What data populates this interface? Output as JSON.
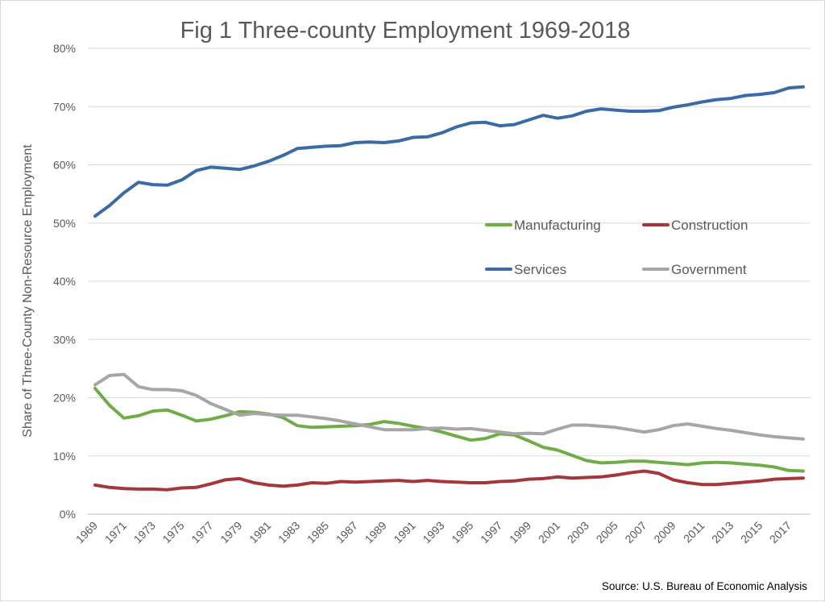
{
  "chart_data": {
    "type": "line",
    "title": "Fig 1 Three-county Employment 1969-2018",
    "ylabel": "Share of Three-County Non-Resource Employment",
    "xlabel": "",
    "source": "Source: U.S. Bureau of Economic Analysis",
    "ylim": [
      0,
      80
    ],
    "yticks": [
      "0%",
      "10%",
      "20%",
      "30%",
      "40%",
      "50%",
      "60%",
      "70%",
      "80%"
    ],
    "x": [
      1969,
      1970,
      1971,
      1972,
      1973,
      1974,
      1975,
      1976,
      1977,
      1978,
      1979,
      1980,
      1981,
      1982,
      1983,
      1984,
      1985,
      1986,
      1987,
      1988,
      1989,
      1990,
      1991,
      1992,
      1993,
      1994,
      1995,
      1996,
      1997,
      1998,
      1999,
      2000,
      2001,
      2002,
      2003,
      2004,
      2005,
      2006,
      2007,
      2008,
      2009,
      2010,
      2011,
      2012,
      2013,
      2014,
      2015,
      2016,
      2017,
      2018
    ],
    "xtick_labels": [
      "1969",
      "1971",
      "1973",
      "1975",
      "1977",
      "1979",
      "1981",
      "1983",
      "1985",
      "1987",
      "1989",
      "1991",
      "1993",
      "1995",
      "1997",
      "1999",
      "2001",
      "2003",
      "2005",
      "2007",
      "2009",
      "2011",
      "2013",
      "2015",
      "2017"
    ],
    "grid": true,
    "legend_placement": "center-right",
    "series": [
      {
        "name": "Manufacturing",
        "color": "#70ad47",
        "values": [
          21.6,
          18.7,
          16.5,
          16.9,
          17.7,
          17.9,
          17.0,
          16.0,
          16.3,
          16.9,
          17.6,
          17.5,
          17.2,
          16.6,
          15.2,
          14.9,
          15.0,
          15.1,
          15.2,
          15.4,
          15.9,
          15.6,
          15.1,
          14.7,
          14.1,
          13.4,
          12.7,
          13.0,
          13.8,
          13.6,
          12.6,
          11.5,
          11.0,
          10.1,
          9.2,
          8.8,
          8.9,
          9.1,
          9.1,
          8.9,
          8.7,
          8.5,
          8.8,
          8.9,
          8.8,
          8.6,
          8.4,
          8.1,
          7.5,
          7.4
        ]
      },
      {
        "name": "Construction",
        "color": "#a5373a",
        "values": [
          5.0,
          4.6,
          4.4,
          4.3,
          4.3,
          4.2,
          4.5,
          4.6,
          5.2,
          5.9,
          6.1,
          5.4,
          5.0,
          4.8,
          5.0,
          5.4,
          5.3,
          5.6,
          5.5,
          5.6,
          5.7,
          5.8,
          5.6,
          5.8,
          5.6,
          5.5,
          5.4,
          5.4,
          5.6,
          5.7,
          6.0,
          6.1,
          6.4,
          6.2,
          6.3,
          6.4,
          6.7,
          7.1,
          7.4,
          7.0,
          5.9,
          5.4,
          5.1,
          5.1,
          5.3,
          5.5,
          5.7,
          6.0,
          6.1,
          6.2
        ]
      },
      {
        "name": "Services",
        "color": "#3a6ba5",
        "values": [
          51.2,
          53.0,
          55.2,
          57.0,
          56.6,
          56.5,
          57.4,
          59.0,
          59.6,
          59.4,
          59.2,
          59.8,
          60.6,
          61.6,
          62.8,
          63.0,
          63.2,
          63.3,
          63.8,
          63.9,
          63.8,
          64.1,
          64.7,
          64.8,
          65.5,
          66.5,
          67.2,
          67.3,
          66.7,
          66.9,
          67.7,
          68.5,
          68.0,
          68.4,
          69.2,
          69.6,
          69.4,
          69.2,
          69.2,
          69.3,
          69.9,
          70.3,
          70.8,
          71.2,
          71.4,
          71.9,
          72.1,
          72.4,
          73.2,
          73.4
        ]
      },
      {
        "name": "Government",
        "color": "#a6a6a6",
        "values": [
          22.2,
          23.8,
          24.0,
          21.9,
          21.4,
          21.4,
          21.2,
          20.4,
          19.0,
          18.0,
          17.0,
          17.3,
          17.1,
          17.0,
          17.0,
          16.7,
          16.4,
          16.0,
          15.5,
          15.0,
          14.5,
          14.5,
          14.5,
          14.7,
          14.8,
          14.6,
          14.7,
          14.4,
          14.1,
          13.8,
          13.9,
          13.8,
          14.6,
          15.3,
          15.3,
          15.1,
          14.9,
          14.5,
          14.1,
          14.5,
          15.2,
          15.5,
          15.1,
          14.7,
          14.4,
          14.0,
          13.6,
          13.3,
          13.1,
          12.9
        ]
      }
    ]
  }
}
